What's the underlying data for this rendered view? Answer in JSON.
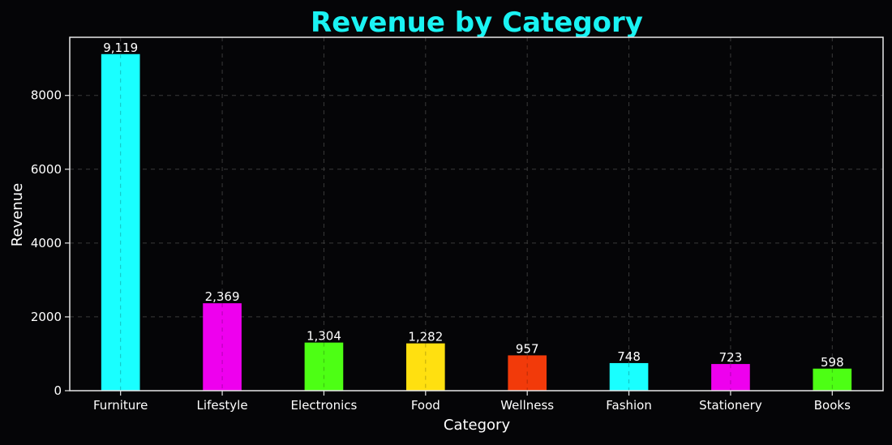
{
  "chart_data": {
    "type": "bar",
    "title": "Revenue by Category",
    "xlabel": "Category",
    "ylabel": "Revenue",
    "categories": [
      "Furniture",
      "Lifestyle",
      "Electronics",
      "Food",
      "Wellness",
      "Fashion",
      "Stationery",
      "Books"
    ],
    "values": [
      9119,
      2369,
      1304,
      1282,
      957,
      748,
      723,
      598
    ],
    "value_labels": [
      "9,119",
      "2,369",
      "1,304",
      "1,282",
      "957",
      "748",
      "723",
      "598"
    ],
    "bar_colors": [
      "#19FFFF",
      "#EE00EE",
      "#4DFF14",
      "#FFE010",
      "#F23A0A",
      "#19FFFF",
      "#EE00EE",
      "#4DFF14"
    ],
    "yticks": [
      0,
      2000,
      4000,
      6000,
      8000
    ],
    "ylim": [
      0,
      9575
    ],
    "grid": true,
    "colors": {
      "background": "#050507",
      "title": "#1AF3F3",
      "axes": "#e8e8e8",
      "grid": "#3a3a3a"
    }
  }
}
